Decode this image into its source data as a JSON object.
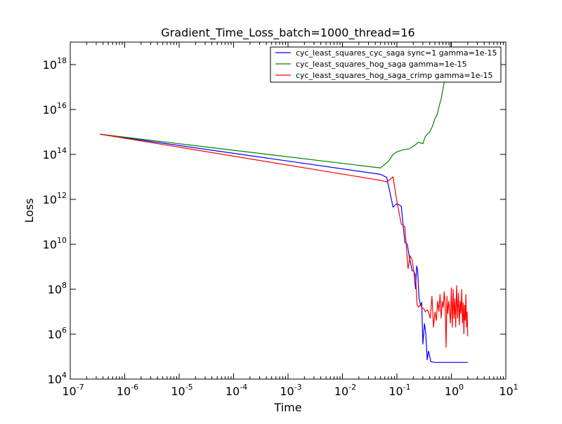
{
  "chart_data": {
    "type": "line",
    "title": "Gradient_Time_Loss_batch=1000_thread=16",
    "xlabel": "Time",
    "ylabel": "Loss",
    "xscale": "log",
    "yscale": "log",
    "xlim": [
      1e-07,
      10
    ],
    "ylim": [
      10000,
      1e+19
    ],
    "grid": false,
    "legend_position": "top-right",
    "x_ticks": [
      {
        "base": "10",
        "exp": "-7",
        "value": 1e-07
      },
      {
        "base": "10",
        "exp": "-6",
        "value": 1e-06
      },
      {
        "base": "10",
        "exp": "-5",
        "value": 1e-05
      },
      {
        "base": "10",
        "exp": "-4",
        "value": 0.0001
      },
      {
        "base": "10",
        "exp": "-3",
        "value": 0.001
      },
      {
        "base": "10",
        "exp": "-2",
        "value": 0.01
      },
      {
        "base": "10",
        "exp": "-1",
        "value": 0.1
      },
      {
        "base": "10",
        "exp": "0",
        "value": 1
      },
      {
        "base": "10",
        "exp": "1",
        "value": 10
      }
    ],
    "y_ticks": [
      {
        "base": "10",
        "exp": "4",
        "value": 10000.0
      },
      {
        "base": "10",
        "exp": "6",
        "value": 1000000.0
      },
      {
        "base": "10",
        "exp": "8",
        "value": 100000000.0
      },
      {
        "base": "10",
        "exp": "10",
        "value": 10000000000.0
      },
      {
        "base": "10",
        "exp": "12",
        "value": 1000000000000.0
      },
      {
        "base": "10",
        "exp": "14",
        "value": 100000000000000.0
      },
      {
        "base": "10",
        "exp": "16",
        "value": 1e+16
      },
      {
        "base": "10",
        "exp": "18",
        "value": 1e+18
      }
    ],
    "series": [
      {
        "name": "cyc_least_squares_cyc_saga sync=1 gamma=1e-15",
        "color": "#0000ff",
        "points": [
          [
            3.5e-07,
            800000000000000.0
          ],
          [
            0.05,
            13000000000000.0
          ],
          [
            0.065,
            9500000000000.0
          ],
          [
            0.085,
            450000000000.0
          ],
          [
            0.1,
            650000000000.0
          ],
          [
            0.12,
            500000000000.0
          ],
          [
            0.14,
            12000000000.0
          ],
          [
            0.155,
            10000000000.0
          ],
          [
            0.17,
            2500000000.0
          ],
          [
            0.19,
            700000000.0
          ],
          [
            0.205,
            600000000.0
          ],
          [
            0.22,
            100000000.0
          ],
          [
            0.23,
            1100000000.0
          ],
          [
            0.24,
            700000000.0
          ],
          [
            0.255,
            40000000.0
          ],
          [
            0.27,
            20000000.0
          ],
          [
            0.285,
            25000000.0
          ],
          [
            0.3,
            350000.0
          ],
          [
            0.32,
            3000000.0
          ],
          [
            0.34,
            1000000.0
          ],
          [
            0.36,
            70000.0
          ],
          [
            0.38,
            180000.0
          ],
          [
            0.42,
            60000.0
          ],
          [
            0.5,
            55000.0
          ],
          [
            2.0,
            55000.0
          ]
        ]
      },
      {
        "name": "cyc_least_squares_hog_saga gamma=1e-15",
        "color": "#008000",
        "points": [
          [
            3.5e-07,
            800000000000000.0
          ],
          [
            0.05,
            25000000000000.0
          ],
          [
            0.07,
            50000000000000.0
          ],
          [
            0.085,
            100000000000000.0
          ],
          [
            0.1,
            130000000000000.0
          ],
          [
            0.13,
            160000000000000.0
          ],
          [
            0.17,
            180000000000000.0
          ],
          [
            0.21,
            250000000000000.0
          ],
          [
            0.25,
            350000000000000.0
          ],
          [
            0.3,
            300000000000000.0
          ],
          [
            0.33,
            600000000000000.0
          ],
          [
            0.36,
            800000000000000.0
          ],
          [
            0.4,
            1000000000000000.0
          ],
          [
            0.45,
            1800000000000000.0
          ],
          [
            0.5,
            4000000000000000.0
          ],
          [
            0.55,
            6000000000000000.0
          ],
          [
            0.6,
            1.5e+16
          ],
          [
            0.65,
            3e+16
          ],
          [
            0.7,
            8e+16
          ],
          [
            0.75,
            2e+17
          ],
          [
            0.8,
            4e+17
          ],
          [
            0.85,
            1e+18
          ],
          [
            0.9,
            3e+18
          ],
          [
            0.95,
            7e+18
          ],
          [
            1.0,
            1.2e+19
          ],
          [
            1.2,
            5e+19
          ]
        ]
      },
      {
        "name": "cyc_least_squares_hog_saga_crimp gamma=1e-15",
        "color": "#ff0000",
        "points": [
          [
            3.5e-07,
            800000000000000.0
          ],
          [
            0.05,
            7000000000000.0
          ],
          [
            0.065,
            6000000000000.0
          ],
          [
            0.085,
            10000000000000.0
          ],
          [
            0.1,
            800000000000.0
          ],
          [
            0.12,
            80000000000.0
          ],
          [
            0.14,
            60000000000.0
          ],
          [
            0.16,
            800000000.0
          ],
          [
            0.175,
            3000000000.0
          ],
          [
            0.19,
            2000000000.0
          ],
          [
            0.205,
            600000000.0
          ],
          [
            0.22,
            400000000.0
          ],
          [
            0.235,
            20000000.0
          ],
          [
            0.25,
            16000000.0
          ],
          [
            0.27,
            20000000.0
          ],
          [
            0.29,
            15000000.0
          ],
          [
            0.31,
            14000000.0
          ],
          [
            0.33,
            10000000.0
          ],
          [
            0.36,
            12000000.0
          ],
          [
            0.38,
            10000000.0
          ],
          [
            0.41,
            5000000.0
          ],
          [
            0.44,
            50000000.0
          ],
          [
            0.47,
            2000000.0
          ],
          [
            0.5,
            10000000.0
          ],
          [
            0.53,
            4000000.0
          ],
          [
            0.56,
            30000000.0
          ],
          [
            0.59,
            10000000.0
          ],
          [
            0.62,
            60000000.0
          ],
          [
            0.65,
            5000000.0
          ],
          [
            0.68,
            30000000.0
          ],
          [
            0.71,
            15000000.0
          ],
          [
            0.74,
            80000000.0
          ],
          [
            0.77,
            20000000.0
          ],
          [
            0.8,
            250000.0
          ],
          [
            0.83,
            50000000.0
          ],
          [
            0.86,
            8000000.0
          ],
          [
            0.9,
            30000000.0
          ],
          [
            0.93,
            10000000.0
          ],
          [
            0.96,
            3000000.0
          ],
          [
            1.0,
            120000000.0
          ],
          [
            1.04,
            2000000.0
          ],
          [
            1.08,
            100000000.0
          ],
          [
            1.12,
            5000000.0
          ],
          [
            1.16,
            40000000.0
          ],
          [
            1.2,
            2000000.0
          ],
          [
            1.25,
            150000000.0
          ],
          [
            1.3,
            5000000.0
          ],
          [
            1.35,
            70000000.0
          ],
          [
            1.4,
            2500000.0
          ],
          [
            1.45,
            30000000.0
          ],
          [
            1.5,
            8000000.0
          ],
          [
            1.55,
            100000000.0
          ],
          [
            1.6,
            3000000.0
          ],
          [
            1.65,
            25000000.0
          ],
          [
            1.7,
            1000000.0
          ],
          [
            1.75,
            20000000.0
          ],
          [
            1.8,
            4000000.0
          ],
          [
            1.85,
            60000000.0
          ],
          [
            1.9,
            2000000.0
          ],
          [
            1.95,
            10000000.0
          ],
          [
            2.0,
            800000.0
          ]
        ]
      }
    ]
  }
}
